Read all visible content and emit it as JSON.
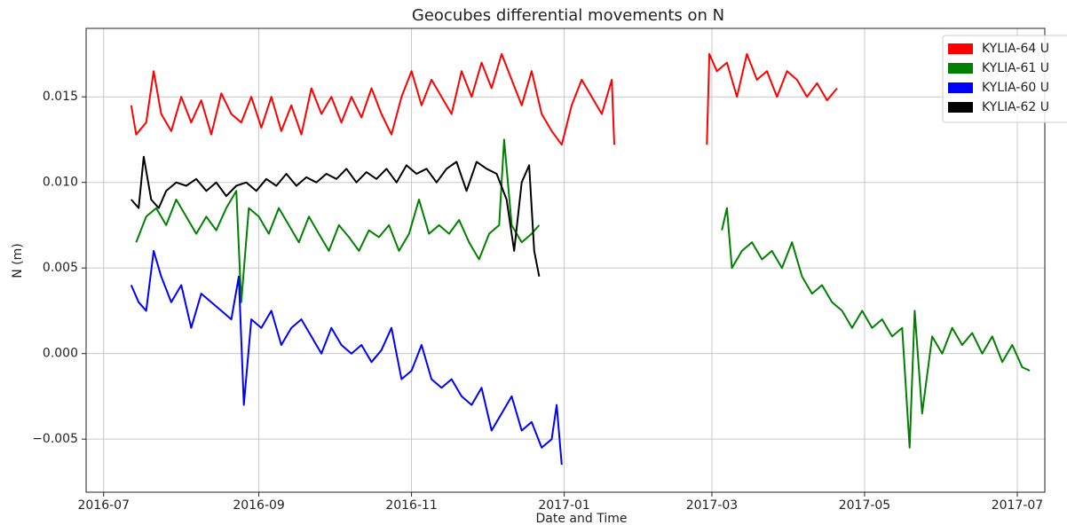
{
  "chart_data": {
    "type": "line",
    "title": "Geocubes differential movements on N",
    "xlabel": "Date and Time",
    "ylabel": "N (m)",
    "xlim": [
      "2016-06-24",
      "2017-07-12"
    ],
    "xticks": [
      "2016-07",
      "2016-09",
      "2016-11",
      "2017-01",
      "2017-03",
      "2017-05",
      "2017-07"
    ],
    "ylim": [
      -0.0081,
      0.019
    ],
    "yticks": [
      {
        "value": -0.005,
        "label": "−0.005"
      },
      {
        "value": 0,
        "label": "0.000"
      },
      0.005,
      {
        "value": 0.01,
        "label": "0.010"
      },
      0.015
    ],
    "grid": true,
    "legend": "upper right",
    "series": [
      {
        "name": "KYLIA-64 U",
        "color": "#ff0000",
        "x": [
          "2016-07-12",
          "2016-07-14",
          "2016-07-18",
          "2016-07-21",
          "2016-07-24",
          "2016-07-28",
          "2016-08-01",
          "2016-08-05",
          "2016-08-09",
          "2016-08-13",
          "2016-08-17",
          "2016-08-21",
          "2016-08-25",
          "2016-08-29",
          "2016-09-02",
          "2016-09-06",
          "2016-09-10",
          "2016-09-14",
          "2016-09-18",
          "2016-09-22",
          "2016-09-26",
          "2016-09-30",
          "2016-10-04",
          "2016-10-08",
          "2016-10-12",
          "2016-10-16",
          "2016-10-20",
          "2016-10-24",
          "2016-10-28",
          "2016-11-01",
          "2016-11-05",
          "2016-11-09",
          "2016-11-13",
          "2016-11-17",
          "2016-11-21",
          "2016-11-25",
          "2016-11-29",
          "2016-12-03",
          "2016-12-07",
          "2016-12-11",
          "2016-12-15",
          "2016-12-19",
          "2016-12-23",
          "2016-12-27",
          "2016-12-31",
          "2017-01-04",
          "2017-01-08",
          "2017-01-12",
          "2017-01-16",
          "2017-01-20",
          "2017-01-21",
          "2017-02-10",
          "2017-02-27",
          "2017-02-28",
          "2017-03-03",
          "2017-03-07",
          "2017-03-11",
          "2017-03-15",
          "2017-03-19",
          "2017-03-23",
          "2017-03-27",
          "2017-03-31",
          "2017-04-04",
          "2017-04-08",
          "2017-04-12",
          "2017-04-16",
          "2017-04-20"
        ],
        "values": [
          0.0145,
          0.0128,
          0.0135,
          0.0165,
          0.014,
          0.013,
          0.015,
          0.0135,
          0.0148,
          0.0128,
          0.0152,
          0.014,
          0.0135,
          0.015,
          0.0132,
          0.015,
          0.013,
          0.0145,
          0.0128,
          0.0155,
          0.014,
          0.015,
          0.0135,
          0.015,
          0.0138,
          0.0155,
          0.014,
          0.0128,
          0.015,
          0.0165,
          0.0145,
          0.016,
          0.015,
          0.014,
          0.0165,
          0.015,
          0.017,
          0.0155,
          0.0175,
          0.016,
          0.0145,
          0.0165,
          0.014,
          0.013,
          0.0122,
          0.0145,
          0.016,
          0.015,
          0.014,
          0.016,
          0.0122,
          null,
          0.0122,
          0.0175,
          0.0165,
          0.017,
          0.015,
          0.0175,
          0.016,
          0.0165,
          0.015,
          0.0165,
          0.016,
          0.015,
          0.0158,
          0.0148,
          0.0155
        ]
      },
      {
        "name": "KYLIA-61 U",
        "color": "#008000",
        "x": [
          "2016-07-14",
          "2016-07-18",
          "2016-07-22",
          "2016-07-26",
          "2016-07-30",
          "2016-08-03",
          "2016-08-07",
          "2016-08-11",
          "2016-08-15",
          "2016-08-19",
          "2016-08-23",
          "2016-08-25",
          "2016-08-28",
          "2016-09-01",
          "2016-09-05",
          "2016-09-09",
          "2016-09-13",
          "2016-09-17",
          "2016-09-21",
          "2016-09-25",
          "2016-09-29",
          "2016-10-03",
          "2016-10-07",
          "2016-10-11",
          "2016-10-15",
          "2016-10-19",
          "2016-10-23",
          "2016-10-27",
          "2016-10-31",
          "2016-11-04",
          "2016-11-08",
          "2016-11-12",
          "2016-11-16",
          "2016-11-20",
          "2016-11-24",
          "2016-11-28",
          "2016-12-02",
          "2016-12-06",
          "2016-12-08",
          "2016-12-11",
          "2016-12-15",
          "2016-12-19",
          "2016-12-22",
          "2017-02-01",
          "2017-03-05",
          "2017-03-07",
          "2017-03-09",
          "2017-03-13",
          "2017-03-17",
          "2017-03-21",
          "2017-03-25",
          "2017-03-29",
          "2017-04-02",
          "2017-04-06",
          "2017-04-10",
          "2017-04-14",
          "2017-04-18",
          "2017-04-22",
          "2017-04-26",
          "2017-04-30",
          "2017-05-04",
          "2017-05-08",
          "2017-05-12",
          "2017-05-16",
          "2017-05-19",
          "2017-05-21",
          "2017-05-24",
          "2017-05-28",
          "2017-06-01",
          "2017-06-05",
          "2017-06-09",
          "2017-06-13",
          "2017-06-17",
          "2017-06-21",
          "2017-06-25",
          "2017-06-29",
          "2017-07-03",
          "2017-07-06"
        ],
        "values": [
          0.0065,
          0.008,
          0.0085,
          0.0075,
          0.009,
          0.008,
          0.007,
          0.008,
          0.0072,
          0.0085,
          0.0095,
          0.003,
          0.0085,
          0.008,
          0.007,
          0.0085,
          0.0075,
          0.0065,
          0.008,
          0.007,
          0.006,
          0.0075,
          0.0068,
          0.006,
          0.0072,
          0.0068,
          0.0075,
          0.006,
          0.007,
          0.009,
          0.007,
          0.0075,
          0.007,
          0.0078,
          0.0065,
          0.0055,
          0.007,
          0.0075,
          0.0125,
          0.0075,
          0.0065,
          0.007,
          0.0075,
          null,
          0.0072,
          0.0085,
          0.005,
          0.006,
          0.0065,
          0.0055,
          0.006,
          0.005,
          0.0065,
          0.0045,
          0.0035,
          0.004,
          0.003,
          0.0025,
          0.0015,
          0.0025,
          0.0015,
          0.002,
          0.001,
          0.0015,
          -0.0055,
          0.0025,
          -0.0035,
          0.001,
          0,
          0.0015,
          0.0005,
          0.0012,
          0,
          0.001,
          -0.0005,
          0.0005,
          -0.0008,
          -0.001
        ]
      },
      {
        "name": "KYLIA-60 U",
        "color": "#0000ff",
        "x": [
          "2016-07-12",
          "2016-07-15",
          "2016-07-18",
          "2016-07-21",
          "2016-07-24",
          "2016-07-28",
          "2016-08-01",
          "2016-08-05",
          "2016-08-09",
          "2016-08-13",
          "2016-08-17",
          "2016-08-21",
          "2016-08-24",
          "2016-08-26",
          "2016-08-29",
          "2016-09-02",
          "2016-09-06",
          "2016-09-10",
          "2016-09-14",
          "2016-09-18",
          "2016-09-22",
          "2016-09-26",
          "2016-09-30",
          "2016-10-04",
          "2016-10-08",
          "2016-10-12",
          "2016-10-16",
          "2016-10-20",
          "2016-10-24",
          "2016-10-28",
          "2016-11-01",
          "2016-11-05",
          "2016-11-09",
          "2016-11-13",
          "2016-11-17",
          "2016-11-21",
          "2016-11-25",
          "2016-11-29",
          "2016-12-03",
          "2016-12-07",
          "2016-12-11",
          "2016-12-15",
          "2016-12-19",
          "2016-12-23",
          "2016-12-27",
          "2016-12-29",
          "2016-12-31"
        ],
        "values": [
          0.004,
          0.003,
          0.0025,
          0.006,
          0.0045,
          0.003,
          0.004,
          0.0015,
          0.0035,
          0.003,
          0.0025,
          0.002,
          0.0045,
          -0.003,
          0.002,
          0.0015,
          0.0025,
          0.0005,
          0.0015,
          0.002,
          0.001,
          0,
          0.0015,
          0.0005,
          0,
          0.0005,
          -0.0005,
          0.0002,
          0.0015,
          -0.0015,
          -0.001,
          0.0005,
          -0.0015,
          -0.002,
          -0.0015,
          -0.0025,
          -0.003,
          -0.002,
          -0.0045,
          -0.0035,
          -0.0025,
          -0.0045,
          -0.004,
          -0.0055,
          -0.005,
          -0.003,
          -0.0065
        ]
      },
      {
        "name": "KYLIA-62 U",
        "color": "#000000",
        "x": [
          "2016-07-12",
          "2016-07-15",
          "2016-07-17",
          "2016-07-20",
          "2016-07-23",
          "2016-07-26",
          "2016-07-30",
          "2016-08-03",
          "2016-08-07",
          "2016-08-11",
          "2016-08-15",
          "2016-08-19",
          "2016-08-23",
          "2016-08-27",
          "2016-08-31",
          "2016-09-04",
          "2016-09-08",
          "2016-09-12",
          "2016-09-16",
          "2016-09-20",
          "2016-09-24",
          "2016-09-28",
          "2016-10-02",
          "2016-10-06",
          "2016-10-10",
          "2016-10-14",
          "2016-10-18",
          "2016-10-22",
          "2016-10-26",
          "2016-10-30",
          "2016-11-03",
          "2016-11-07",
          "2016-11-11",
          "2016-11-15",
          "2016-11-19",
          "2016-11-23",
          "2016-11-27",
          "2016-12-01",
          "2016-12-05",
          "2016-12-09",
          "2016-12-12",
          "2016-12-15",
          "2016-12-18",
          "2016-12-20",
          "2016-12-22"
        ],
        "values": [
          0.009,
          0.0085,
          0.0115,
          0.009,
          0.0085,
          0.0095,
          0.01,
          0.0098,
          0.0102,
          0.0095,
          0.01,
          0.0092,
          0.0098,
          0.01,
          0.0095,
          0.0102,
          0.0098,
          0.0105,
          0.0098,
          0.0103,
          0.01,
          0.0105,
          0.0102,
          0.0108,
          0.01,
          0.0106,
          0.0102,
          0.0108,
          0.01,
          0.011,
          0.0105,
          0.0108,
          0.01,
          0.0108,
          0.0112,
          0.0095,
          0.0112,
          0.0108,
          0.0105,
          0.009,
          0.006,
          0.01,
          0.011,
          0.006,
          0.0045
        ]
      }
    ]
  }
}
